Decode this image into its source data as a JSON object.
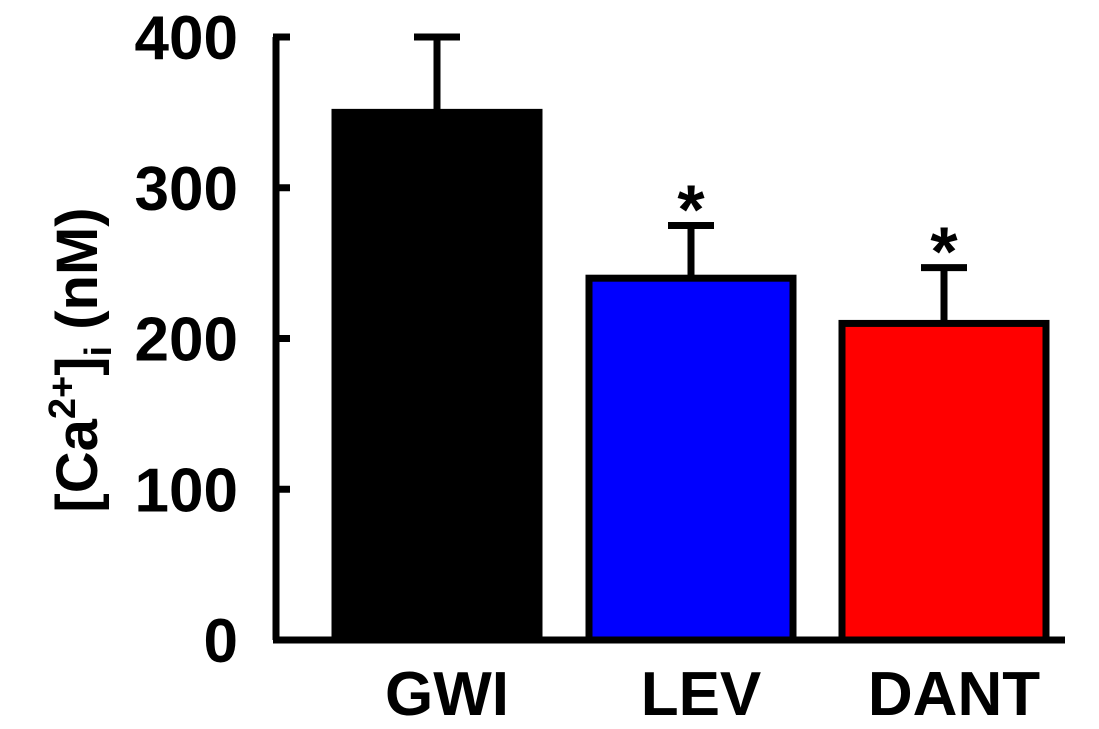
{
  "chart_data": {
    "type": "bar",
    "categories": [
      "GWI",
      "LEV",
      "DANT"
    ],
    "values": [
      350,
      240,
      210
    ],
    "errors": [
      50,
      35,
      37
    ],
    "colors": [
      "#000000",
      "#0000ff",
      "#ff0000"
    ],
    "significance": [
      "",
      "*",
      "*"
    ],
    "ylabel": {
      "open": "[Ca",
      "sup": "2+",
      "close": "]",
      "sub": "i",
      "unit": " (nM)"
    },
    "ylim": [
      0,
      400
    ],
    "yticks": [
      0,
      100,
      200,
      300,
      400
    ],
    "yticklabels": [
      "0",
      "100",
      "200",
      "300",
      "400"
    ],
    "grid": false,
    "legend": "none"
  }
}
